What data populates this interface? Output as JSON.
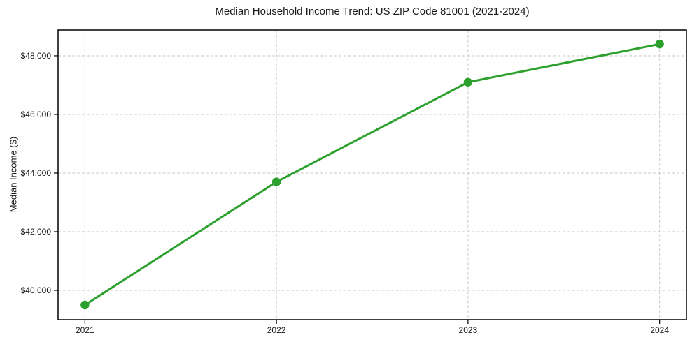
{
  "figure": {
    "background": "#ffffff"
  },
  "chart_data": {
    "type": "line",
    "title": "Median Household Income Trend: US ZIP Code 81001 (2021-2024)",
    "xlabel": "",
    "ylabel": "Median Income ($)",
    "categories": [
      "2021",
      "2022",
      "2023",
      "2024"
    ],
    "values": [
      39500,
      43700,
      47100,
      48400
    ],
    "y_ticks": [
      40000,
      42000,
      44000,
      46000,
      48000
    ],
    "y_tick_labels": [
      "$40,000",
      "$42,000",
      "$44,000",
      "$46,000",
      "$48,000"
    ],
    "ylim": [
      39000,
      48880
    ],
    "grid": true,
    "grid_style": "dashed",
    "legend_position": "none",
    "line_color": "#2ca02c",
    "marker": "circle",
    "grid_color": "#c9c9c9",
    "axis_color": "#000000",
    "text_color": "#1a1a1a"
  }
}
